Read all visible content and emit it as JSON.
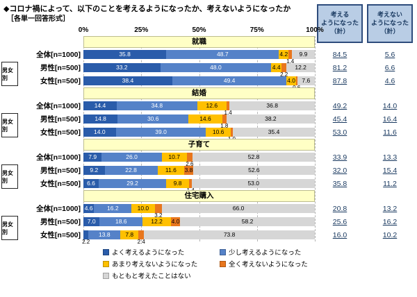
{
  "title": "◆コロナ禍によって、以下のことを考えるようになったか、考えないようになったか",
  "subtitle": "［各単一回答形式］",
  "summary_columns": [
    {
      "header": "考える\nようになった\n（計）"
    },
    {
      "header": "考えない\nようになった\n（計）"
    }
  ],
  "group_label": "男女別",
  "chart_data": {
    "type": "bar",
    "stacked": true,
    "orientation": "horizontal",
    "xlim": [
      0,
      100
    ],
    "axis_ticks": [
      "0%",
      "25%",
      "50%",
      "75%",
      "100%"
    ],
    "legend": [
      "よく考えるようになった",
      "少し考えるようになった",
      "あまり考えないようになった",
      "全く考えないようになった",
      "もともと考えたことはない"
    ],
    "colors": [
      "#2A5CAA",
      "#5582C8",
      "#FFC000",
      "#E8761D",
      "#D6D6D6"
    ],
    "summary_rule": "think_total = seg1+seg2, not_think_total = seg3+seg4",
    "sections": [
      {
        "label": "就職",
        "rows": [
          {
            "label": "全体[n=1000]",
            "values": [
              "35.8",
              "48.7",
              "4.2",
              "1.4",
              "9.9"
            ],
            "totals": [
              "84.5",
              "5.6"
            ]
          },
          {
            "label": "男性[n=500]",
            "values": [
              "33.2",
              "48.0",
              "4.4",
              "2.2",
              "12.2"
            ],
            "totals": [
              "81.2",
              "6.6"
            ]
          },
          {
            "label": "女性[n=500]",
            "values": [
              "38.4",
              "49.4",
              "4.0",
              "0.6",
              "7.6"
            ],
            "totals": [
              "87.8",
              "4.6"
            ]
          }
        ]
      },
      {
        "label": "結婚",
        "rows": [
          {
            "label": "全体[n=1000]",
            "values": [
              "14.4",
              "34.8",
              "12.6",
              "1.4",
              "36.8"
            ],
            "totals": [
              "49.2",
              "14.0"
            ]
          },
          {
            "label": "男性[n=500]",
            "values": [
              "14.8",
              "30.6",
              "14.6",
              "1.8",
              "38.2"
            ],
            "totals": [
              "45.4",
              "16.4"
            ]
          },
          {
            "label": "女性[n=500]",
            "values": [
              "14.0",
              "39.0",
              "10.6",
              "1.0",
              "35.4"
            ],
            "totals": [
              "53.0",
              "11.6"
            ]
          }
        ]
      },
      {
        "label": "子育て",
        "rows": [
          {
            "label": "全体[n=1000]",
            "values": [
              "7.9",
              "26.0",
              "10.7",
              "2.6",
              "52.8"
            ],
            "totals": [
              "33.9",
              "13.3"
            ]
          },
          {
            "label": "男性[n=500]",
            "values": [
              "9.2",
              "22.8",
              "11.6",
              "3.8",
              "52.6"
            ],
            "totals": [
              "32.0",
              "15.4"
            ]
          },
          {
            "label": "女性[n=500]",
            "values": [
              "6.6",
              "29.2",
              "9.8",
              "1.4",
              "53.0"
            ],
            "totals": [
              "35.8",
              "11.2"
            ]
          }
        ]
      },
      {
        "label": "住宅購入",
        "rows": [
          {
            "label": "全体[n=1000]",
            "values": [
              "4.6",
              "16.2",
              "10.0",
              "3.2",
              "66.0"
            ],
            "totals": [
              "20.8",
              "13.2"
            ]
          },
          {
            "label": "男性[n=500]",
            "values": [
              "7.0",
              "18.6",
              "12.2",
              "4.0",
              "58.2"
            ],
            "totals": [
              "25.6",
              "16.2"
            ]
          },
          {
            "label": "女性[n=500]",
            "values": [
              "2.2",
              "13.8",
              "7.8",
              "2.4",
              "73.8"
            ],
            "totals": [
              "16.0",
              "10.2"
            ]
          }
        ]
      }
    ]
  }
}
